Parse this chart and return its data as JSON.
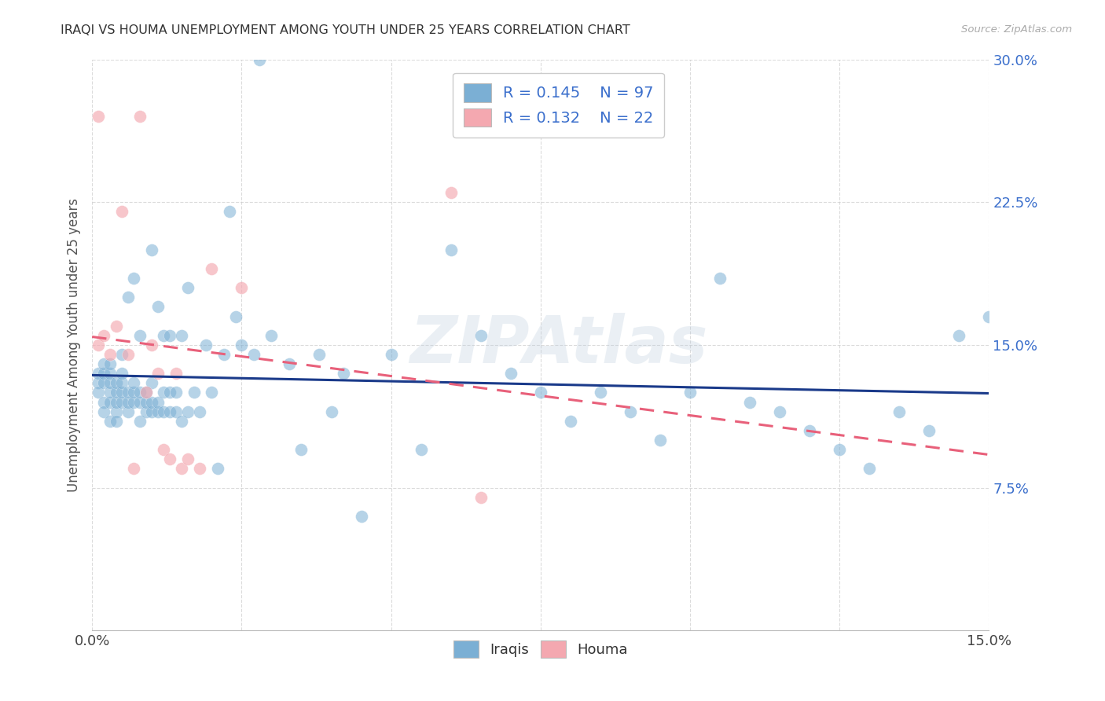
{
  "title": "IRAQI VS HOUMA UNEMPLOYMENT AMONG YOUTH UNDER 25 YEARS CORRELATION CHART",
  "source": "Source: ZipAtlas.com",
  "ylabel": "Unemployment Among Youth under 25 years",
  "xlim": [
    0.0,
    0.15
  ],
  "ylim": [
    0.0,
    0.3
  ],
  "ytick_vals": [
    0.0,
    0.075,
    0.15,
    0.225,
    0.3
  ],
  "ytick_labels": [
    "",
    "7.5%",
    "15.0%",
    "22.5%",
    "30.0%"
  ],
  "blue_color": "#7BAFD4",
  "pink_color": "#F4A8B0",
  "blue_line_color": "#1A3A8A",
  "pink_line_color": "#E8607A",
  "watermark": "ZIPAtlas",
  "legend_text_color": "#3B6FCC",
  "iraqis_x": [
    0.001,
    0.001,
    0.001,
    0.002,
    0.002,
    0.002,
    0.002,
    0.002,
    0.003,
    0.003,
    0.003,
    0.003,
    0.003,
    0.003,
    0.004,
    0.004,
    0.004,
    0.004,
    0.004,
    0.005,
    0.005,
    0.005,
    0.005,
    0.005,
    0.006,
    0.006,
    0.006,
    0.006,
    0.007,
    0.007,
    0.007,
    0.007,
    0.008,
    0.008,
    0.008,
    0.008,
    0.009,
    0.009,
    0.009,
    0.01,
    0.01,
    0.01,
    0.01,
    0.011,
    0.011,
    0.011,
    0.012,
    0.012,
    0.012,
    0.013,
    0.013,
    0.013,
    0.014,
    0.014,
    0.015,
    0.015,
    0.016,
    0.016,
    0.017,
    0.018,
    0.019,
    0.02,
    0.021,
    0.022,
    0.023,
    0.024,
    0.025,
    0.027,
    0.028,
    0.03,
    0.033,
    0.035,
    0.038,
    0.04,
    0.042,
    0.045,
    0.05,
    0.055,
    0.06,
    0.065,
    0.07,
    0.075,
    0.08,
    0.085,
    0.09,
    0.095,
    0.1,
    0.105,
    0.11,
    0.115,
    0.12,
    0.125,
    0.13,
    0.135,
    0.14,
    0.145,
    0.15
  ],
  "iraqis_y": [
    0.13,
    0.125,
    0.135,
    0.12,
    0.13,
    0.135,
    0.14,
    0.115,
    0.11,
    0.12,
    0.125,
    0.13,
    0.135,
    0.14,
    0.115,
    0.12,
    0.125,
    0.13,
    0.11,
    0.12,
    0.125,
    0.13,
    0.135,
    0.145,
    0.115,
    0.12,
    0.125,
    0.175,
    0.12,
    0.125,
    0.13,
    0.185,
    0.11,
    0.12,
    0.125,
    0.155,
    0.115,
    0.12,
    0.125,
    0.115,
    0.12,
    0.13,
    0.2,
    0.115,
    0.12,
    0.17,
    0.115,
    0.125,
    0.155,
    0.115,
    0.125,
    0.155,
    0.115,
    0.125,
    0.11,
    0.155,
    0.115,
    0.18,
    0.125,
    0.115,
    0.15,
    0.125,
    0.085,
    0.145,
    0.22,
    0.165,
    0.15,
    0.145,
    0.3,
    0.155,
    0.14,
    0.095,
    0.145,
    0.115,
    0.135,
    0.06,
    0.145,
    0.095,
    0.2,
    0.155,
    0.135,
    0.125,
    0.11,
    0.125,
    0.115,
    0.1,
    0.125,
    0.185,
    0.12,
    0.115,
    0.105,
    0.095,
    0.085,
    0.115,
    0.105,
    0.155,
    0.165
  ],
  "houma_x": [
    0.001,
    0.001,
    0.002,
    0.003,
    0.004,
    0.005,
    0.006,
    0.007,
    0.008,
    0.009,
    0.01,
    0.011,
    0.012,
    0.013,
    0.014,
    0.015,
    0.016,
    0.018,
    0.02,
    0.025,
    0.06,
    0.065
  ],
  "houma_y": [
    0.15,
    0.27,
    0.155,
    0.145,
    0.16,
    0.22,
    0.145,
    0.085,
    0.27,
    0.125,
    0.15,
    0.135,
    0.095,
    0.09,
    0.135,
    0.085,
    0.09,
    0.085,
    0.19,
    0.18,
    0.23,
    0.07
  ]
}
